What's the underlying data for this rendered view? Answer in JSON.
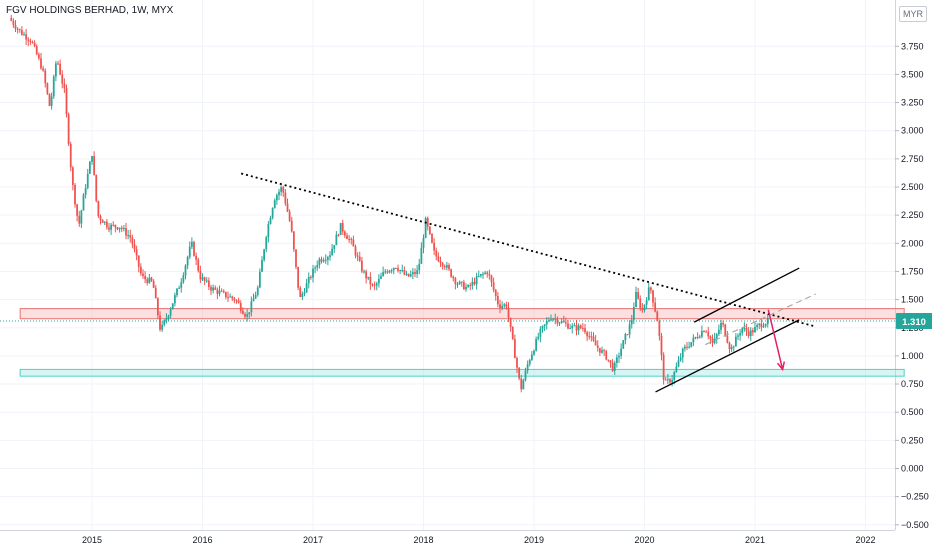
{
  "header": {
    "title": "FGV HOLDINGS BERHAD, 1W, MYX",
    "currency": "MYR"
  },
  "colors": {
    "up": "#26a69a",
    "down": "#ef5350",
    "resistance_zone": "#f5a5a5",
    "support_zone": "#8de3dc",
    "arrow": "#e91e63",
    "trendline": "#000000",
    "price_badge": "#26a69a"
  },
  "chart_data": {
    "type": "candlestick",
    "title": "FGV HOLDINGS BERHAD, 1W, MYX",
    "xlabel": "",
    "ylabel": "",
    "currency": "MYR",
    "ylim": [
      -0.5,
      4.0
    ],
    "xlim": [
      2014.2,
      2022.5
    ],
    "x_ticks": [
      "2015",
      "2016",
      "2017",
      "2018",
      "2019",
      "2020",
      "2021",
      "2022"
    ],
    "y_ticks": [
      "3.750",
      "3.500",
      "3.250",
      "3.000",
      "2.750",
      "2.500",
      "2.250",
      "2.000",
      "1.750",
      "1.500",
      "1.250",
      "1.000",
      "0.750",
      "0.500",
      "0.250",
      "0.000",
      "−0.250",
      "−0.500"
    ],
    "last_price": "1.310",
    "grid": true,
    "price_path": [
      [
        2014.25,
        4.0
      ],
      [
        2014.35,
        3.88
      ],
      [
        2014.45,
        3.8
      ],
      [
        2014.55,
        3.55
      ],
      [
        2014.62,
        3.2
      ],
      [
        2014.68,
        3.65
      ],
      [
        2014.75,
        3.35
      ],
      [
        2014.82,
        2.55
      ],
      [
        2014.88,
        2.15
      ],
      [
        2014.93,
        2.45
      ],
      [
        2015.0,
        2.8
      ],
      [
        2015.05,
        2.25
      ],
      [
        2015.15,
        2.15
      ],
      [
        2015.25,
        2.15
      ],
      [
        2015.35,
        2.05
      ],
      [
        2015.45,
        1.7
      ],
      [
        2015.55,
        1.65
      ],
      [
        2015.62,
        1.22
      ],
      [
        2015.7,
        1.4
      ],
      [
        2015.8,
        1.65
      ],
      [
        2015.9,
        2.0
      ],
      [
        2015.98,
        1.7
      ],
      [
        2016.08,
        1.6
      ],
      [
        2016.18,
        1.55
      ],
      [
        2016.3,
        1.5
      ],
      [
        2016.4,
        1.35
      ],
      [
        2016.5,
        1.6
      ],
      [
        2016.58,
        2.1
      ],
      [
        2016.65,
        2.4
      ],
      [
        2016.72,
        2.5
      ],
      [
        2016.8,
        2.15
      ],
      [
        2016.88,
        1.5
      ],
      [
        2016.95,
        1.65
      ],
      [
        2017.05,
        1.85
      ],
      [
        2017.15,
        1.9
      ],
      [
        2017.25,
        2.15
      ],
      [
        2017.35,
        2.0
      ],
      [
        2017.45,
        1.75
      ],
      [
        2017.55,
        1.6
      ],
      [
        2017.65,
        1.75
      ],
      [
        2017.75,
        1.8
      ],
      [
        2017.85,
        1.7
      ],
      [
        2017.95,
        1.75
      ],
      [
        2018.02,
        2.2
      ],
      [
        2018.1,
        1.9
      ],
      [
        2018.2,
        1.8
      ],
      [
        2018.3,
        1.65
      ],
      [
        2018.4,
        1.6
      ],
      [
        2018.5,
        1.7
      ],
      [
        2018.58,
        1.75
      ],
      [
        2018.68,
        1.45
      ],
      [
        2018.75,
        1.45
      ],
      [
        2018.82,
        1.05
      ],
      [
        2018.88,
        0.7
      ],
      [
        2018.95,
        0.95
      ],
      [
        2019.05,
        1.2
      ],
      [
        2019.15,
        1.35
      ],
      [
        2019.25,
        1.3
      ],
      [
        2019.35,
        1.25
      ],
      [
        2019.45,
        1.25
      ],
      [
        2019.55,
        1.1
      ],
      [
        2019.65,
        1.0
      ],
      [
        2019.72,
        0.88
      ],
      [
        2019.8,
        1.1
      ],
      [
        2019.88,
        1.3
      ],
      [
        2019.92,
        1.55
      ],
      [
        2019.98,
        1.4
      ],
      [
        2020.05,
        1.62
      ],
      [
        2020.12,
        1.3
      ],
      [
        2020.18,
        0.75
      ],
      [
        2020.25,
        0.8
      ],
      [
        2020.35,
        1.05
      ],
      [
        2020.45,
        1.15
      ],
      [
        2020.55,
        1.25
      ],
      [
        2020.62,
        1.1
      ],
      [
        2020.7,
        1.3
      ],
      [
        2020.78,
        1.05
      ],
      [
        2020.88,
        1.25
      ],
      [
        2020.95,
        1.2
      ],
      [
        2021.05,
        1.28
      ],
      [
        2021.12,
        1.31
      ]
    ],
    "zones": [
      {
        "kind": "resistance",
        "y0": 1.33,
        "y1": 1.42,
        "x0": 2014.35,
        "x1": 2022.35
      },
      {
        "kind": "support",
        "y0": 0.82,
        "y1": 0.88,
        "x0": 2014.35,
        "x1": 2022.35
      }
    ],
    "trendlines": [
      {
        "style": "dotted",
        "x0": 2016.35,
        "y0": 2.62,
        "x1": 2021.55,
        "y1": 1.26
      },
      {
        "style": "solid",
        "x0": 2020.45,
        "y0": 1.3,
        "x1": 2021.4,
        "y1": 1.78
      },
      {
        "style": "solid",
        "x0": 2020.1,
        "y0": 0.68,
        "x1": 2021.4,
        "y1": 1.32
      },
      {
        "style": "dashed",
        "x0": 2020.55,
        "y0": 1.1,
        "x1": 2021.55,
        "y1": 1.55
      }
    ],
    "projection_arrow": {
      "points": [
        [
          2021.12,
          1.41
        ],
        [
          2021.25,
          0.88
        ]
      ]
    }
  }
}
